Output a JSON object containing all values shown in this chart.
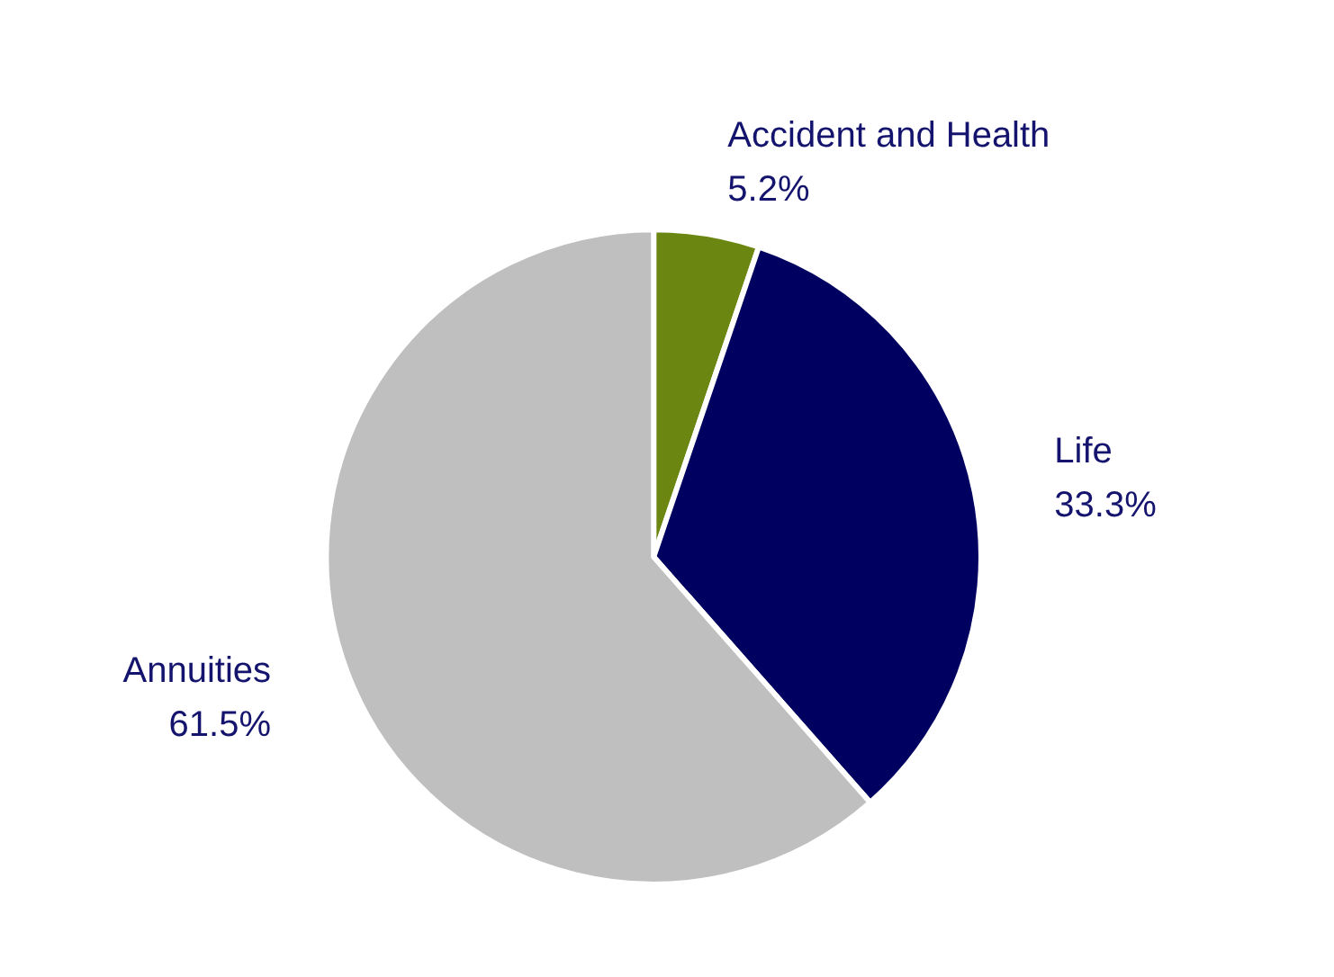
{
  "chart_data": {
    "type": "pie",
    "categories": [
      "Accident and Health",
      "Life",
      "Annuities"
    ],
    "values": [
      5.2,
      33.3,
      61.5
    ],
    "colors": [
      "#6b8712",
      "#000060",
      "#bfbfbf"
    ],
    "value_labels": [
      "5.2%",
      "33.3%",
      "61.5%"
    ]
  }
}
